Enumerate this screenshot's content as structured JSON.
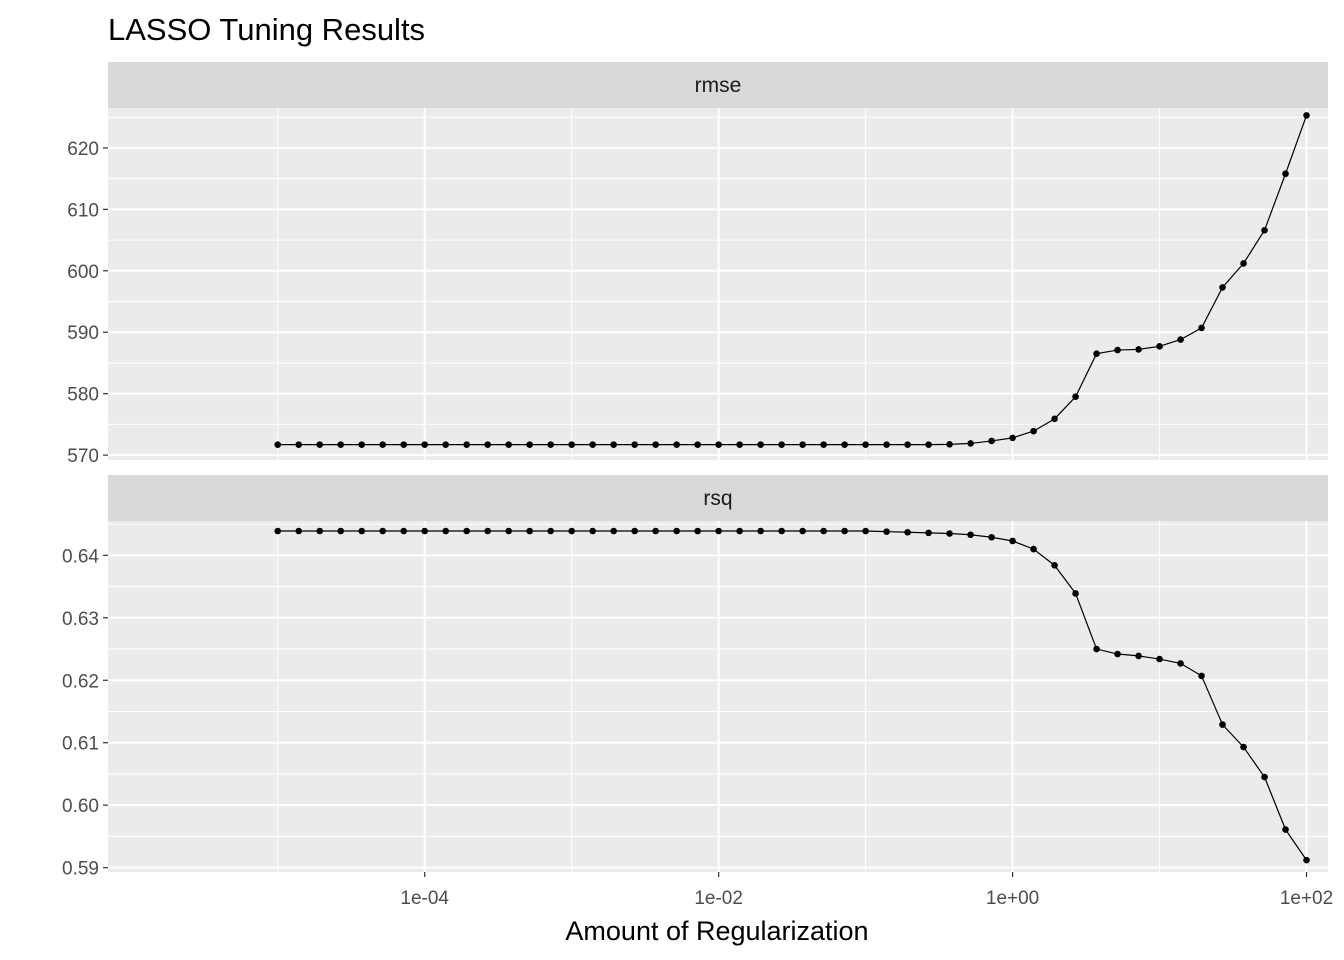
{
  "chart_data": {
    "type": "line",
    "title": "LASSO Tuning Results",
    "xlabel": "Amount of Regularization",
    "ylabel": "",
    "x_scale": "log10",
    "xlim": [
      7e-07,
      140
    ],
    "x_ticks": [
      0.0001,
      0.01,
      1,
      100
    ],
    "x_tick_labels": [
      "1e-04",
      "1e-02",
      "1e+00",
      "1e+02"
    ],
    "grid": true,
    "legend": "none",
    "colors": {
      "panel_background": "#ebebeb",
      "strip_background": "#d9d9d9",
      "grid": "#ffffff",
      "line": "#000000"
    },
    "x": [
      1e-05,
      1.3895e-05,
      1.9307e-05,
      2.6827e-05,
      3.7276e-05,
      5.1795e-05,
      7.1969e-05,
      0.0001,
      0.00013895,
      0.00019307,
      0.00026827,
      0.00037276,
      0.00051795,
      0.00071969,
      0.001,
      0.0013895,
      0.0019307,
      0.0026827,
      0.0037276,
      0.0051795,
      0.0071969,
      0.01,
      0.013895,
      0.019307,
      0.026827,
      0.037276,
      0.051795,
      0.071969,
      0.1,
      0.13895,
      0.19307,
      0.26827,
      0.37276,
      0.51795,
      0.71969,
      1,
      1.3895,
      1.9307,
      2.6827,
      3.7276,
      5.1795,
      7.1969,
      10,
      13.895,
      19.307,
      26.827,
      37.276,
      51.795,
      71.969,
      100
    ],
    "panels": [
      {
        "label": "rmse",
        "ylim": [
          569.2,
          626.5
        ],
        "y_ticks": [
          570,
          580,
          590,
          600,
          610,
          620
        ],
        "y_tick_labels": [
          "570",
          "580",
          "590",
          "600",
          "610",
          "620"
        ],
        "values": [
          571.7,
          571.7,
          571.7,
          571.7,
          571.7,
          571.7,
          571.7,
          571.7,
          571.7,
          571.7,
          571.7,
          571.7,
          571.7,
          571.7,
          571.7,
          571.7,
          571.7,
          571.7,
          571.7,
          571.7,
          571.7,
          571.7,
          571.7,
          571.7,
          571.7,
          571.7,
          571.7,
          571.7,
          571.7,
          571.7,
          571.7,
          571.7,
          571.75,
          571.9,
          572.3,
          572.8,
          573.9,
          575.9,
          579.5,
          586.5,
          587.1,
          587.2,
          587.7,
          588.8,
          590.7,
          597.3,
          601.2,
          606.6,
          615.8,
          625.3
        ]
      },
      {
        "label": "rsq",
        "ylim": [
          0.5893,
          0.6455
        ],
        "y_ticks": [
          0.59,
          0.6,
          0.61,
          0.62,
          0.63,
          0.64
        ],
        "y_tick_labels": [
          "0.59",
          "0.60",
          "0.61",
          "0.62",
          "0.63",
          "0.64"
        ],
        "values": [
          0.6439,
          0.6439,
          0.6439,
          0.6439,
          0.6439,
          0.6439,
          0.6439,
          0.6439,
          0.6439,
          0.6439,
          0.6439,
          0.6439,
          0.6439,
          0.6439,
          0.6439,
          0.6439,
          0.6439,
          0.6439,
          0.6439,
          0.6439,
          0.6439,
          0.6439,
          0.6439,
          0.6439,
          0.6439,
          0.6439,
          0.6439,
          0.6439,
          0.6439,
          0.6438,
          0.6437,
          0.6436,
          0.6435,
          0.6433,
          0.6429,
          0.6423,
          0.641,
          0.6384,
          0.6339,
          0.625,
          0.6242,
          0.6239,
          0.6234,
          0.6227,
          0.6207,
          0.6129,
          0.6093,
          0.6045,
          0.5961,
          0.5912
        ]
      }
    ]
  }
}
